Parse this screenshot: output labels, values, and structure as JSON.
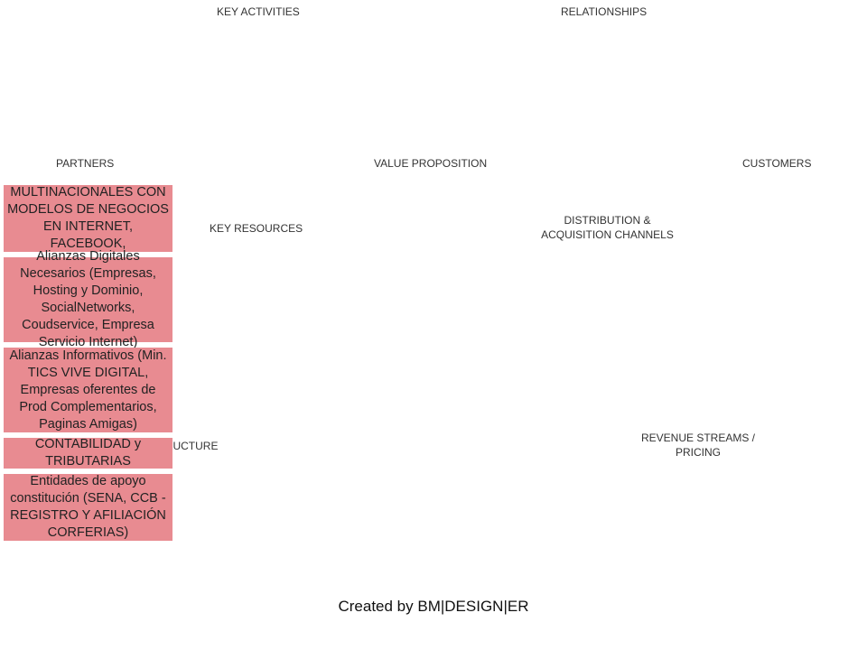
{
  "canvas": {
    "headers": {
      "key_activities": "KEY ACTIVITIES",
      "relationships": "RELATIONSHIPS",
      "partners": "PARTNERS",
      "value_proposition": "VALUE PROPOSITION",
      "customers": "CUSTOMERS",
      "key_resources": "KEY RESOURCES",
      "distribution_line1": "DISTRIBUTION  &",
      "distribution_line2": "ACQUISITION  CHANNELS",
      "cost_structure": "COST  STRUCTURE",
      "revenue_line1": "REVENUE STREAMS  /",
      "revenue_line2": "PRICING"
    },
    "note_color": "#e88b91",
    "partner_notes": [
      "MULTINACIONALES CON MODELOS DE NEGOCIOS EN INTERNET, FACEBOOK,",
      "Alianzas Digitales Necesarios (Empresas, Hosting y Dominio, SocialNetworks, Coudservice, Empresa Servicio Internet)",
      "Alianzas Informativos (Min. TICS VIVE DIGITAL, Empresas oferentes de Prod Complementarios, Paginas Amigas)",
      "CONTABILIDAD y TRIBUTARIAS",
      "Entidades de apoyo constitución (SENA, CCB - REGISTRO Y AFILIACIÓN CORFERIAS)"
    ]
  },
  "footer": {
    "credit": "Created by BM|DESIGN|ER"
  }
}
